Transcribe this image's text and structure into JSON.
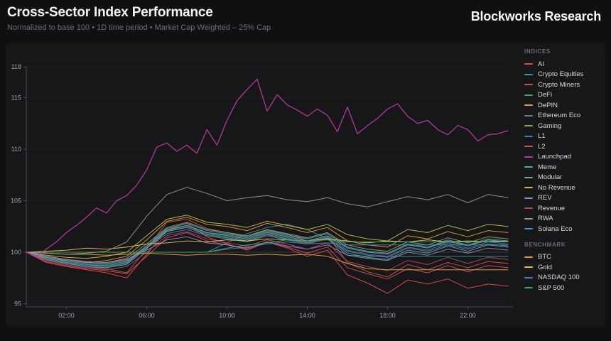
{
  "header": {
    "title": "Cross-Sector Index Performance",
    "subtitle": "Normalized to base 100 • 1D time period • Market Cap Weighted – 25% Cap",
    "brand": "Blockworks Research"
  },
  "legend": {
    "indices_label": "INDICES",
    "benchmark_label": "BENCHMARK"
  },
  "theme": {
    "page_bg": "#101013",
    "card_bg": "#17171a",
    "axis_color": "#4a4a52",
    "grid_color": "#202024",
    "base_line_color": "#55555c",
    "tick_label_color": "#a0a0a8"
  },
  "chart_data": {
    "type": "line",
    "title": "Cross-Sector Index Performance",
    "x_unit": "time of day (24h)",
    "x_range_hours": [
      0,
      24
    ],
    "x_tick_hours": [
      2,
      6,
      10,
      14,
      18,
      22
    ],
    "x_tick_labels": [
      "02:00",
      "06:00",
      "10:00",
      "14:00",
      "18:00",
      "22:00"
    ],
    "ylim": [
      95,
      118
    ],
    "y_ticks": [
      95,
      100,
      105,
      110,
      115,
      118
    ],
    "base_line": 100,
    "grid": "horizontal-faint",
    "legend_position": "right",
    "series": [
      {
        "name": "AI",
        "group": "indices",
        "color": "#e14b4b",
        "values": [
          100,
          99.0,
          98.6,
          98.3,
          98.0,
          97.5,
          99.8,
          102.2,
          102.8,
          101.5,
          100.8,
          100.2,
          101.0,
          100.4,
          99.6,
          100.2,
          97.8,
          97.0,
          96.0,
          97.3,
          96.9,
          97.4,
          96.5,
          96.9,
          96.7
        ]
      },
      {
        "name": "Crypto Equities",
        "group": "indices",
        "color": "#3f8ea3",
        "values": [
          100,
          100,
          100,
          100,
          100,
          100,
          100,
          100,
          100,
          100,
          100.9,
          101.8,
          102.4,
          102.7,
          102.2,
          101.3,
          99.7,
          99.6,
          99.6,
          99.6,
          99.6,
          99.6,
          99.6,
          99.6,
          99.6
        ]
      },
      {
        "name": "Crypto Miners",
        "group": "indices",
        "color": "#c05a3e",
        "values": [
          100,
          99.3,
          98.9,
          98.6,
          98.4,
          98.0,
          100.3,
          102.9,
          103.2,
          102.3,
          101.9,
          101.5,
          102.2,
          101.7,
          101.1,
          101.6,
          99.0,
          98.1,
          97.6,
          98.8,
          98.3,
          99.0,
          98.5,
          99.1,
          98.9
        ]
      },
      {
        "name": "DeFi",
        "group": "indices",
        "color": "#3fa37e",
        "values": [
          100,
          99.4,
          99.0,
          98.8,
          98.7,
          99.0,
          100.6,
          102.2,
          102.6,
          101.9,
          101.7,
          101.4,
          102.0,
          101.6,
          101.3,
          101.8,
          100.5,
          100.1,
          99.9,
          100.8,
          100.5,
          101.0,
          100.7,
          101.1,
          101.0
        ]
      },
      {
        "name": "DePIN",
        "group": "indices",
        "color": "#d99c3c",
        "values": [
          100,
          99.5,
          99.2,
          99.0,
          99.2,
          99.6,
          101.2,
          103.0,
          103.4,
          102.7,
          102.5,
          102.1,
          102.8,
          102.4,
          101.9,
          102.4,
          101.1,
          100.7,
          100.5,
          101.6,
          101.3,
          102.0,
          101.5,
          102.1,
          101.9
        ]
      },
      {
        "name": "Ethereum Eco",
        "group": "indices",
        "color": "#64819e",
        "values": [
          100,
          99.5,
          99.1,
          98.9,
          98.8,
          99.1,
          100.4,
          101.8,
          102.2,
          101.6,
          101.3,
          101.0,
          101.6,
          101.2,
          100.8,
          101.3,
          100.1,
          99.7,
          99.5,
          100.4,
          100.1,
          100.7,
          100.3,
          100.8,
          100.6
        ]
      },
      {
        "name": "Gaming",
        "group": "indices",
        "color": "#8fa065",
        "values": [
          100,
          99.6,
          99.3,
          99.1,
          99.0,
          99.4,
          100.8,
          102.4,
          102.9,
          102.2,
          101.9,
          101.6,
          102.2,
          101.8,
          101.4,
          101.9,
          100.7,
          100.3,
          100.1,
          101.0,
          100.7,
          101.4,
          100.9,
          101.5,
          101.3
        ]
      },
      {
        "name": "L1",
        "group": "indices",
        "color": "#4d74b5",
        "values": [
          100,
          99.4,
          99.0,
          98.7,
          98.6,
          98.9,
          100.5,
          102.0,
          102.5,
          101.8,
          101.5,
          101.2,
          101.8,
          101.4,
          101.0,
          101.5,
          100.2,
          99.8,
          99.6,
          100.5,
          100.2,
          100.9,
          100.4,
          101.0,
          100.8
        ]
      },
      {
        "name": "L2",
        "group": "indices",
        "color": "#cf4f62",
        "values": [
          100,
          99.1,
          98.7,
          98.4,
          98.2,
          97.9,
          99.6,
          101.4,
          101.9,
          101.1,
          100.7,
          100.3,
          101.0,
          100.5,
          99.9,
          100.5,
          98.5,
          97.9,
          97.4,
          98.4,
          98.0,
          98.7,
          98.1,
          98.7,
          98.5
        ]
      },
      {
        "name": "Launchpad",
        "group": "indices",
        "color": "#bb3a9e",
        "values": [
          100,
          99.6,
          100.3,
          101.0,
          101.9,
          102.6,
          103.4,
          104.3,
          103.8,
          105.0,
          105.5,
          106.5,
          108.0,
          110.2,
          110.6,
          109.8,
          110.4,
          109.6,
          111.9,
          110.4,
          112.8,
          114.7,
          115.8,
          116.8,
          113.7,
          115.3,
          114.3,
          113.8,
          113.2,
          113.9,
          113.3,
          111.7,
          114.1,
          111.5,
          112.3,
          113.0,
          113.9,
          114.4,
          113.2,
          112.5,
          112.8,
          111.9,
          111.4,
          112.3,
          111.9,
          110.8,
          111.4,
          111.5,
          111.8
        ]
      },
      {
        "name": "Meme",
        "group": "indices",
        "color": "#4fae96",
        "values": [
          100,
          99.3,
          98.9,
          98.6,
          98.5,
          98.8,
          100.4,
          102.0,
          102.4,
          101.7,
          101.4,
          101.1,
          101.7,
          101.3,
          100.9,
          101.4,
          99.9,
          99.5,
          99.3,
          100.2,
          99.9,
          100.6,
          100.1,
          100.7,
          100.5
        ]
      },
      {
        "name": "Modular",
        "group": "indices",
        "color": "#78a18c",
        "values": [
          100,
          99.5,
          99.2,
          99.0,
          98.9,
          99.2,
          100.6,
          102.1,
          102.6,
          101.9,
          101.6,
          101.3,
          101.9,
          101.5,
          101.1,
          101.6,
          100.4,
          100.0,
          99.8,
          100.7,
          100.4,
          101.1,
          100.6,
          101.2,
          101.0
        ]
      },
      {
        "name": "No Revenue",
        "group": "indices",
        "color": "#c6bb4a",
        "values": [
          100,
          99.7,
          99.5,
          99.4,
          99.6,
          100.0,
          101.6,
          103.2,
          103.6,
          102.9,
          102.7,
          102.4,
          103.0,
          102.6,
          102.2,
          102.7,
          101.7,
          101.3,
          101.1,
          102.2,
          101.9,
          102.6,
          102.1,
          102.7,
          102.5
        ]
      },
      {
        "name": "REV",
        "group": "indices",
        "color": "#9486c2",
        "values": [
          100,
          99.6,
          99.3,
          99.1,
          99.0,
          99.3,
          100.2,
          101.2,
          101.5,
          100.9,
          100.7,
          100.4,
          101.0,
          100.6,
          100.3,
          100.7,
          99.7,
          99.4,
          99.2,
          100.0,
          99.7,
          100.3,
          99.9,
          100.4,
          100.2
        ]
      },
      {
        "name": "Revenue",
        "group": "indices",
        "color": "#a8486c",
        "values": [
          100,
          99.2,
          98.8,
          98.5,
          98.3,
          98.6,
          100.0,
          101.6,
          102.0,
          101.3,
          100.9,
          100.6,
          101.2,
          100.8,
          100.3,
          100.9,
          99.1,
          98.6,
          98.2,
          99.2,
          98.8,
          99.5,
          98.9,
          99.5,
          99.3
        ]
      },
      {
        "name": "RWA",
        "group": "indices",
        "color": "#a3967a",
        "values": [
          100,
          99.9,
          99.8,
          99.9,
          100.1,
          101.0,
          103.5,
          105.6,
          106.3,
          105.7,
          105.0,
          105.3,
          105.5,
          105.1,
          104.9,
          105.3,
          104.7,
          104.4,
          104.9,
          105.4,
          105.1,
          105.6,
          104.8,
          105.6,
          105.3
        ]
      },
      {
        "name": "Solana Eco",
        "group": "indices",
        "color": "#4a8fc7",
        "values": [
          100,
          99.4,
          99.0,
          98.8,
          98.6,
          98.9,
          100.6,
          102.3,
          102.8,
          102.1,
          101.8,
          101.5,
          102.1,
          101.7,
          101.3,
          101.8,
          100.5,
          100.1,
          99.9,
          100.8,
          100.5,
          101.2,
          100.7,
          101.3,
          101.1
        ]
      },
      {
        "name": "BTC",
        "group": "benchmark",
        "color": "#e0a23f",
        "values": [
          100,
          99.9,
          99.8,
          99.8,
          99.7,
          99.8,
          99.9,
          99.8,
          99.7,
          99.8,
          99.8,
          99.7,
          99.8,
          99.7,
          99.8,
          99.6,
          98.9,
          98.4,
          98.3,
          98.3,
          98.3,
          98.3,
          98.3,
          98.3,
          98.3
        ]
      },
      {
        "name": "Gold",
        "group": "benchmark",
        "color": "#ddc44f",
        "values": [
          100,
          100.1,
          100.2,
          100.4,
          100.3,
          100.5,
          100.8,
          100.9,
          101.1,
          101.0,
          101.2,
          101.1,
          101.3,
          101.2,
          101.1,
          101.3,
          101.1,
          100.9,
          101.1,
          101.0,
          101.2,
          101.0,
          101.1,
          101.0,
          101.1
        ]
      },
      {
        "name": "NASDAQ 100",
        "group": "benchmark",
        "color": "#5b7fae",
        "values": [
          100,
          100,
          100,
          100,
          100,
          100,
          100,
          100,
          100,
          100,
          100.3,
          100.5,
          100.8,
          101.0,
          100.8,
          100.9,
          100.7,
          100.7,
          100.7,
          100.7,
          100.7,
          100.7,
          100.7,
          100.7,
          100.7
        ]
      },
      {
        "name": "S&P 500",
        "group": "benchmark",
        "color": "#36a86c",
        "values": [
          100,
          100,
          100,
          100,
          100,
          100,
          100,
          100,
          100,
          100,
          100.4,
          100.7,
          100.9,
          101.2,
          101.1,
          101.2,
          101.0,
          101.0,
          101.0,
          101.0,
          101.0,
          101.0,
          101.0,
          101.0,
          101.0
        ]
      }
    ]
  }
}
